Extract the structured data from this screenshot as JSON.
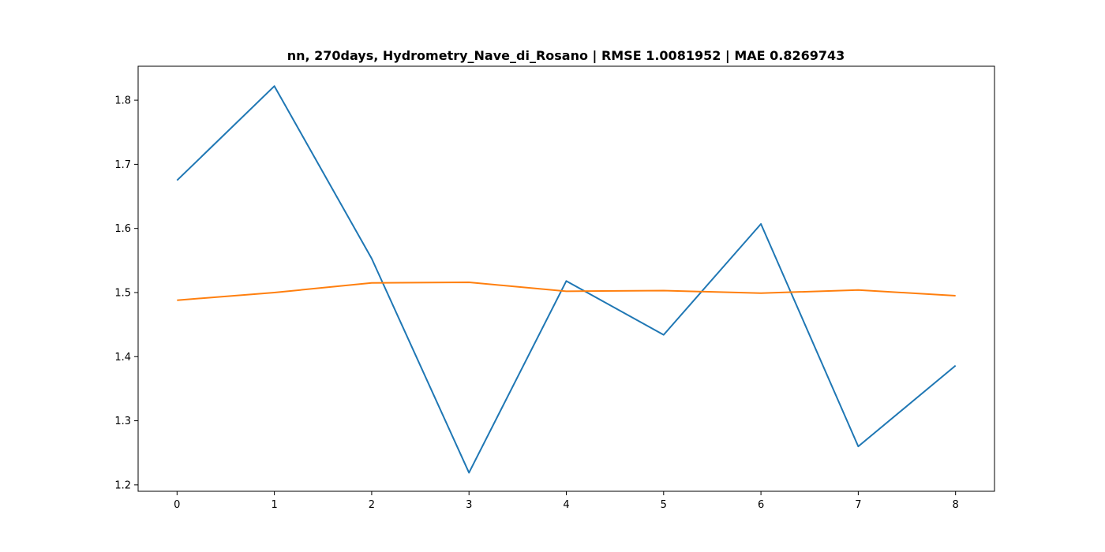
{
  "chart_data": {
    "type": "line",
    "title": "nn, 270days, Hydrometry_Nave_di_Rosano | RMSE 1.0081952 | MAE 0.8269743",
    "xlabel": "",
    "ylabel": "",
    "x": [
      0,
      1,
      2,
      3,
      4,
      5,
      6,
      7,
      8
    ],
    "xlim": [
      -0.4,
      8.4
    ],
    "ylim": [
      1.19,
      1.853
    ],
    "x_ticks": [
      0,
      1,
      2,
      3,
      4,
      5,
      6,
      7,
      8
    ],
    "x_tick_labels": [
      "0",
      "1",
      "2",
      "3",
      "4",
      "5",
      "6",
      "7",
      "8"
    ],
    "y_ticks": [
      1.2,
      1.3,
      1.4,
      1.5,
      1.6,
      1.7,
      1.8
    ],
    "y_tick_labels": [
      "1.2",
      "1.3",
      "1.4",
      "1.5",
      "1.6",
      "1.7",
      "1.8"
    ],
    "grid": false,
    "legend": "none",
    "series": [
      {
        "color": "#1f77b4",
        "values": [
          1.675,
          1.822,
          1.553,
          1.219,
          1.518,
          1.434,
          1.607,
          1.26,
          1.386
        ]
      },
      {
        "color": "#ff7f0e",
        "values": [
          1.488,
          1.5,
          1.515,
          1.516,
          1.502,
          1.503,
          1.499,
          1.504,
          1.495
        ]
      }
    ]
  }
}
